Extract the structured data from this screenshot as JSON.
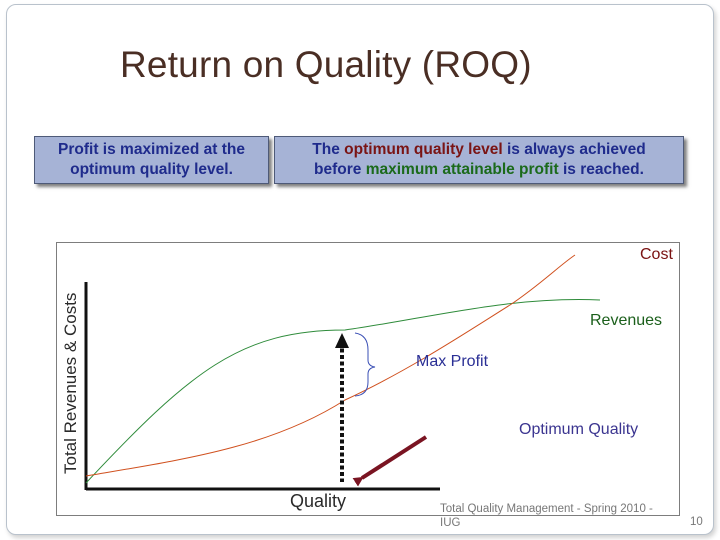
{
  "slide": {
    "title": "Return on Quality (ROQ)",
    "left_box_text": "Profit is maximized at the optimum quality level.",
    "right_box": {
      "part1": "The ",
      "part2": "optimum quality level",
      "part3": " is always achieved",
      "part4": "before ",
      "part5": "maximum attainable profit",
      "part6": " is reached."
    },
    "footer_text": "Total Quality Management - Spring 2010 - IUG",
    "page_number": "10"
  },
  "diagram": {
    "y_axis_label": "Total Revenues & Costs",
    "x_axis_label": "Quality",
    "labels": {
      "cost": "Cost",
      "revenues": "Revenues",
      "max_profit": "Max Profit",
      "optimum_quality": "Optimum Quality"
    },
    "colors": {
      "cost_curve": "#d0501e",
      "revenue_curve": "#2e8b3a",
      "axis": "#111111",
      "dashed_marker": "#111111",
      "arrow": "#7a1422",
      "brace": "#3a4fb5"
    }
  }
}
